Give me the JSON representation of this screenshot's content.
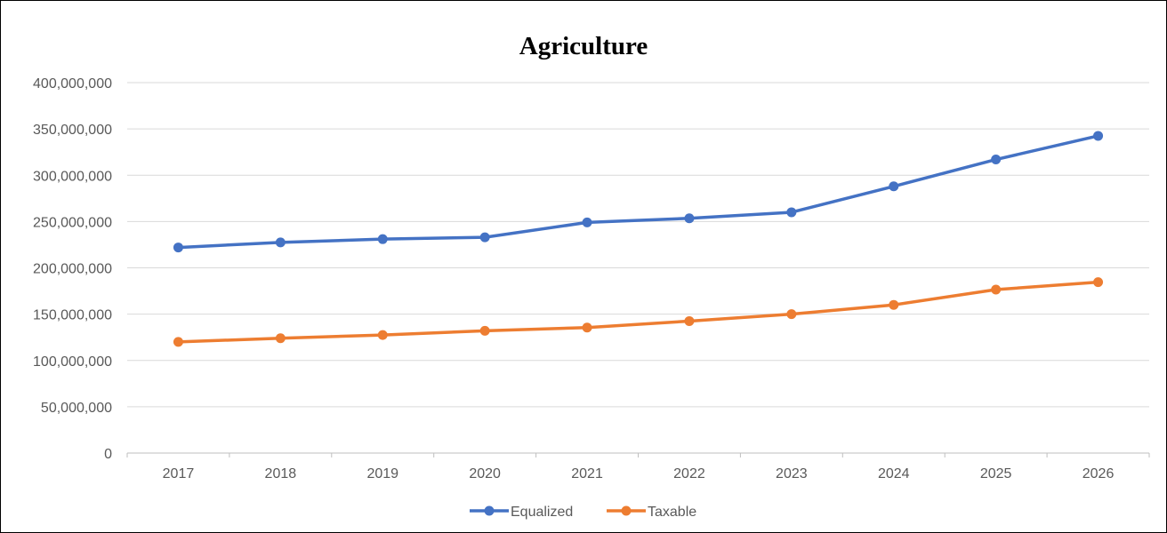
{
  "chart_data": {
    "type": "line",
    "title": "Agriculture",
    "xlabel": "",
    "ylabel": "",
    "categories": [
      "2017",
      "2018",
      "2019",
      "2020",
      "2021",
      "2022",
      "2023",
      "2024",
      "2025",
      "2026"
    ],
    "ylim": [
      0,
      400000000
    ],
    "yticks": [
      0,
      50000000,
      100000000,
      150000000,
      200000000,
      250000000,
      300000000,
      350000000,
      400000000
    ],
    "ytick_labels": [
      "0",
      "50,000,000",
      "100,000,000",
      "150,000,000",
      "200,000,000",
      "250,000,000",
      "300,000,000",
      "350,000,000",
      "400,000,000"
    ],
    "grid": true,
    "legend_position": "bottom",
    "series": [
      {
        "name": "Equalized",
        "color": "#4472C4",
        "values": [
          222000000,
          227500000,
          231000000,
          233000000,
          249000000,
          253500000,
          260000000,
          288000000,
          317000000,
          342500000
        ]
      },
      {
        "name": "Taxable",
        "color": "#ED7D31",
        "values": [
          120000000,
          124000000,
          127500000,
          132000000,
          135500000,
          142500000,
          150000000,
          160000000,
          176500000,
          184500000
        ]
      }
    ]
  }
}
